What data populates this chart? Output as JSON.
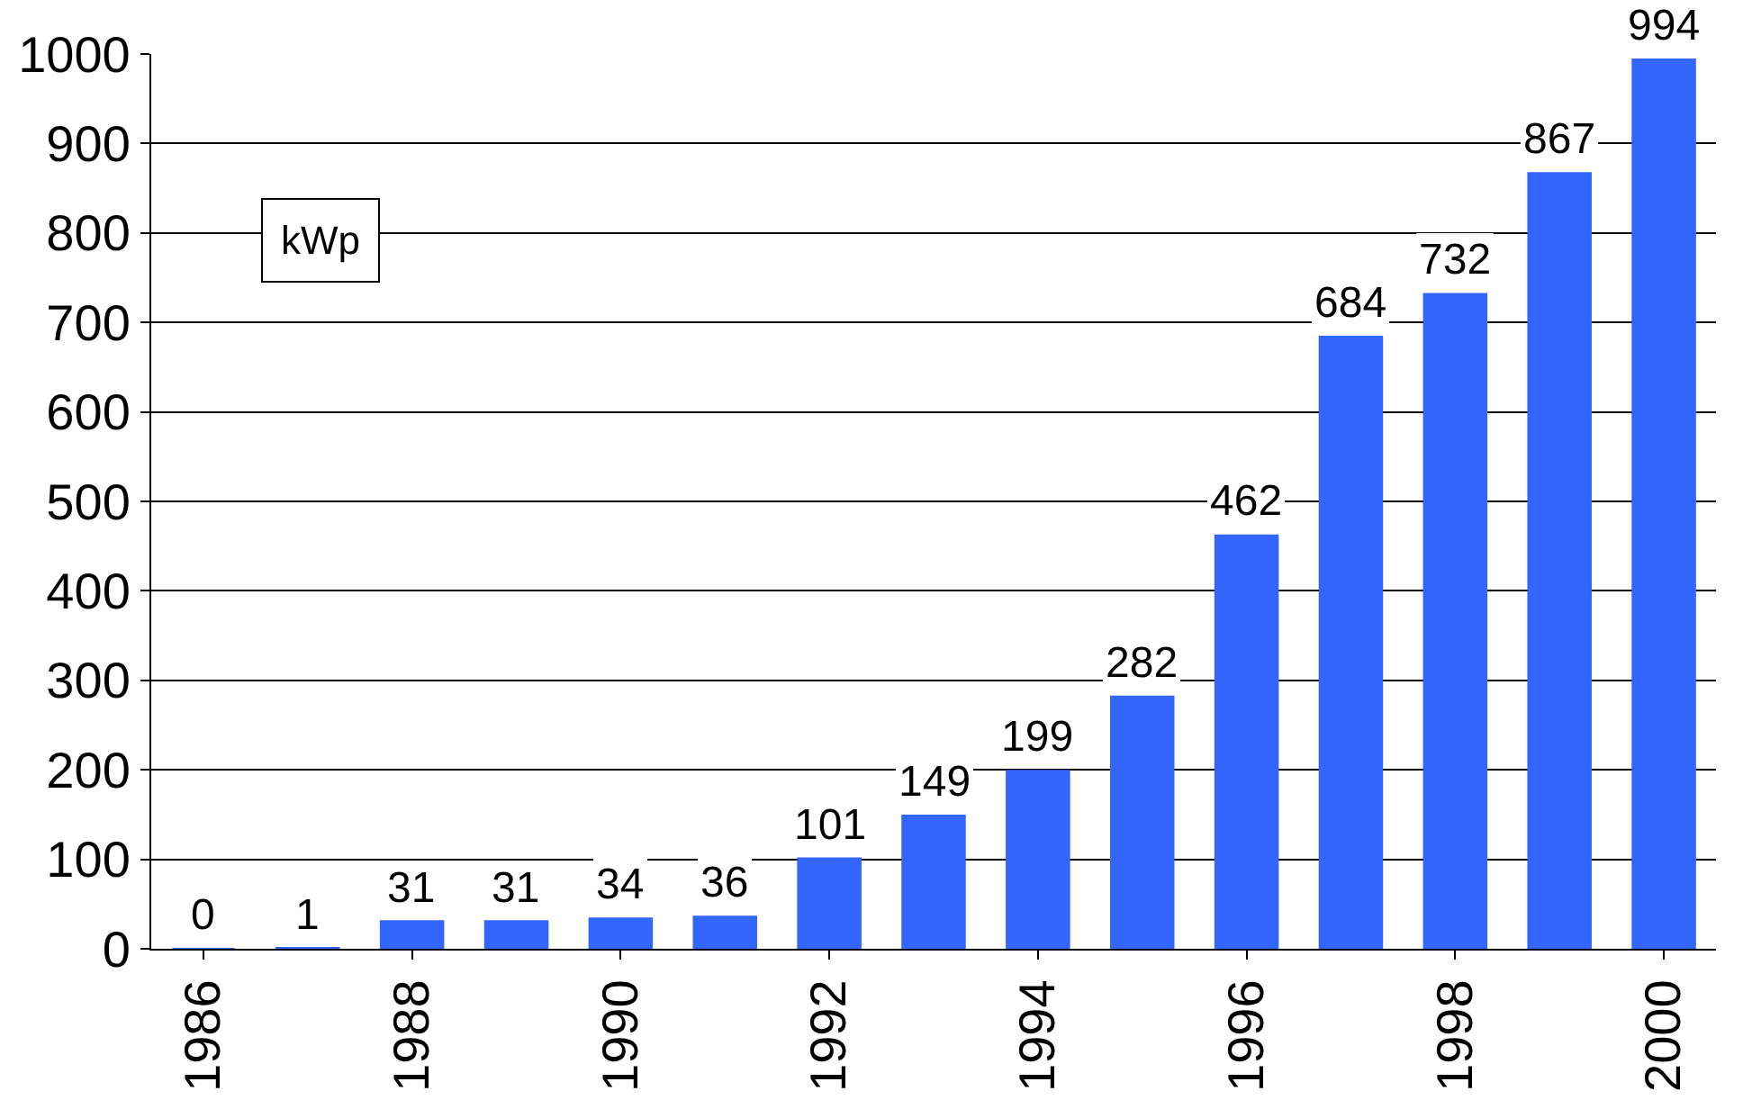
{
  "chart_data": {
    "type": "bar",
    "categories": [
      "1986",
      null,
      "1988",
      null,
      "1990",
      null,
      "1992",
      null,
      "1994",
      null,
      "1996",
      null,
      "1998",
      null,
      "2000"
    ],
    "values": [
      0,
      1,
      31,
      31,
      34,
      36,
      101,
      149,
      199,
      282,
      462,
      684,
      732,
      867,
      994
    ],
    "color": "#3366ff",
    "ylim": [
      0,
      1000
    ],
    "yticks": [
      0,
      100,
      200,
      300,
      400,
      500,
      600,
      700,
      800,
      900,
      1000
    ],
    "grid": "y",
    "data_labels": true,
    "legend": false,
    "annotations": [
      "kWp"
    ]
  }
}
